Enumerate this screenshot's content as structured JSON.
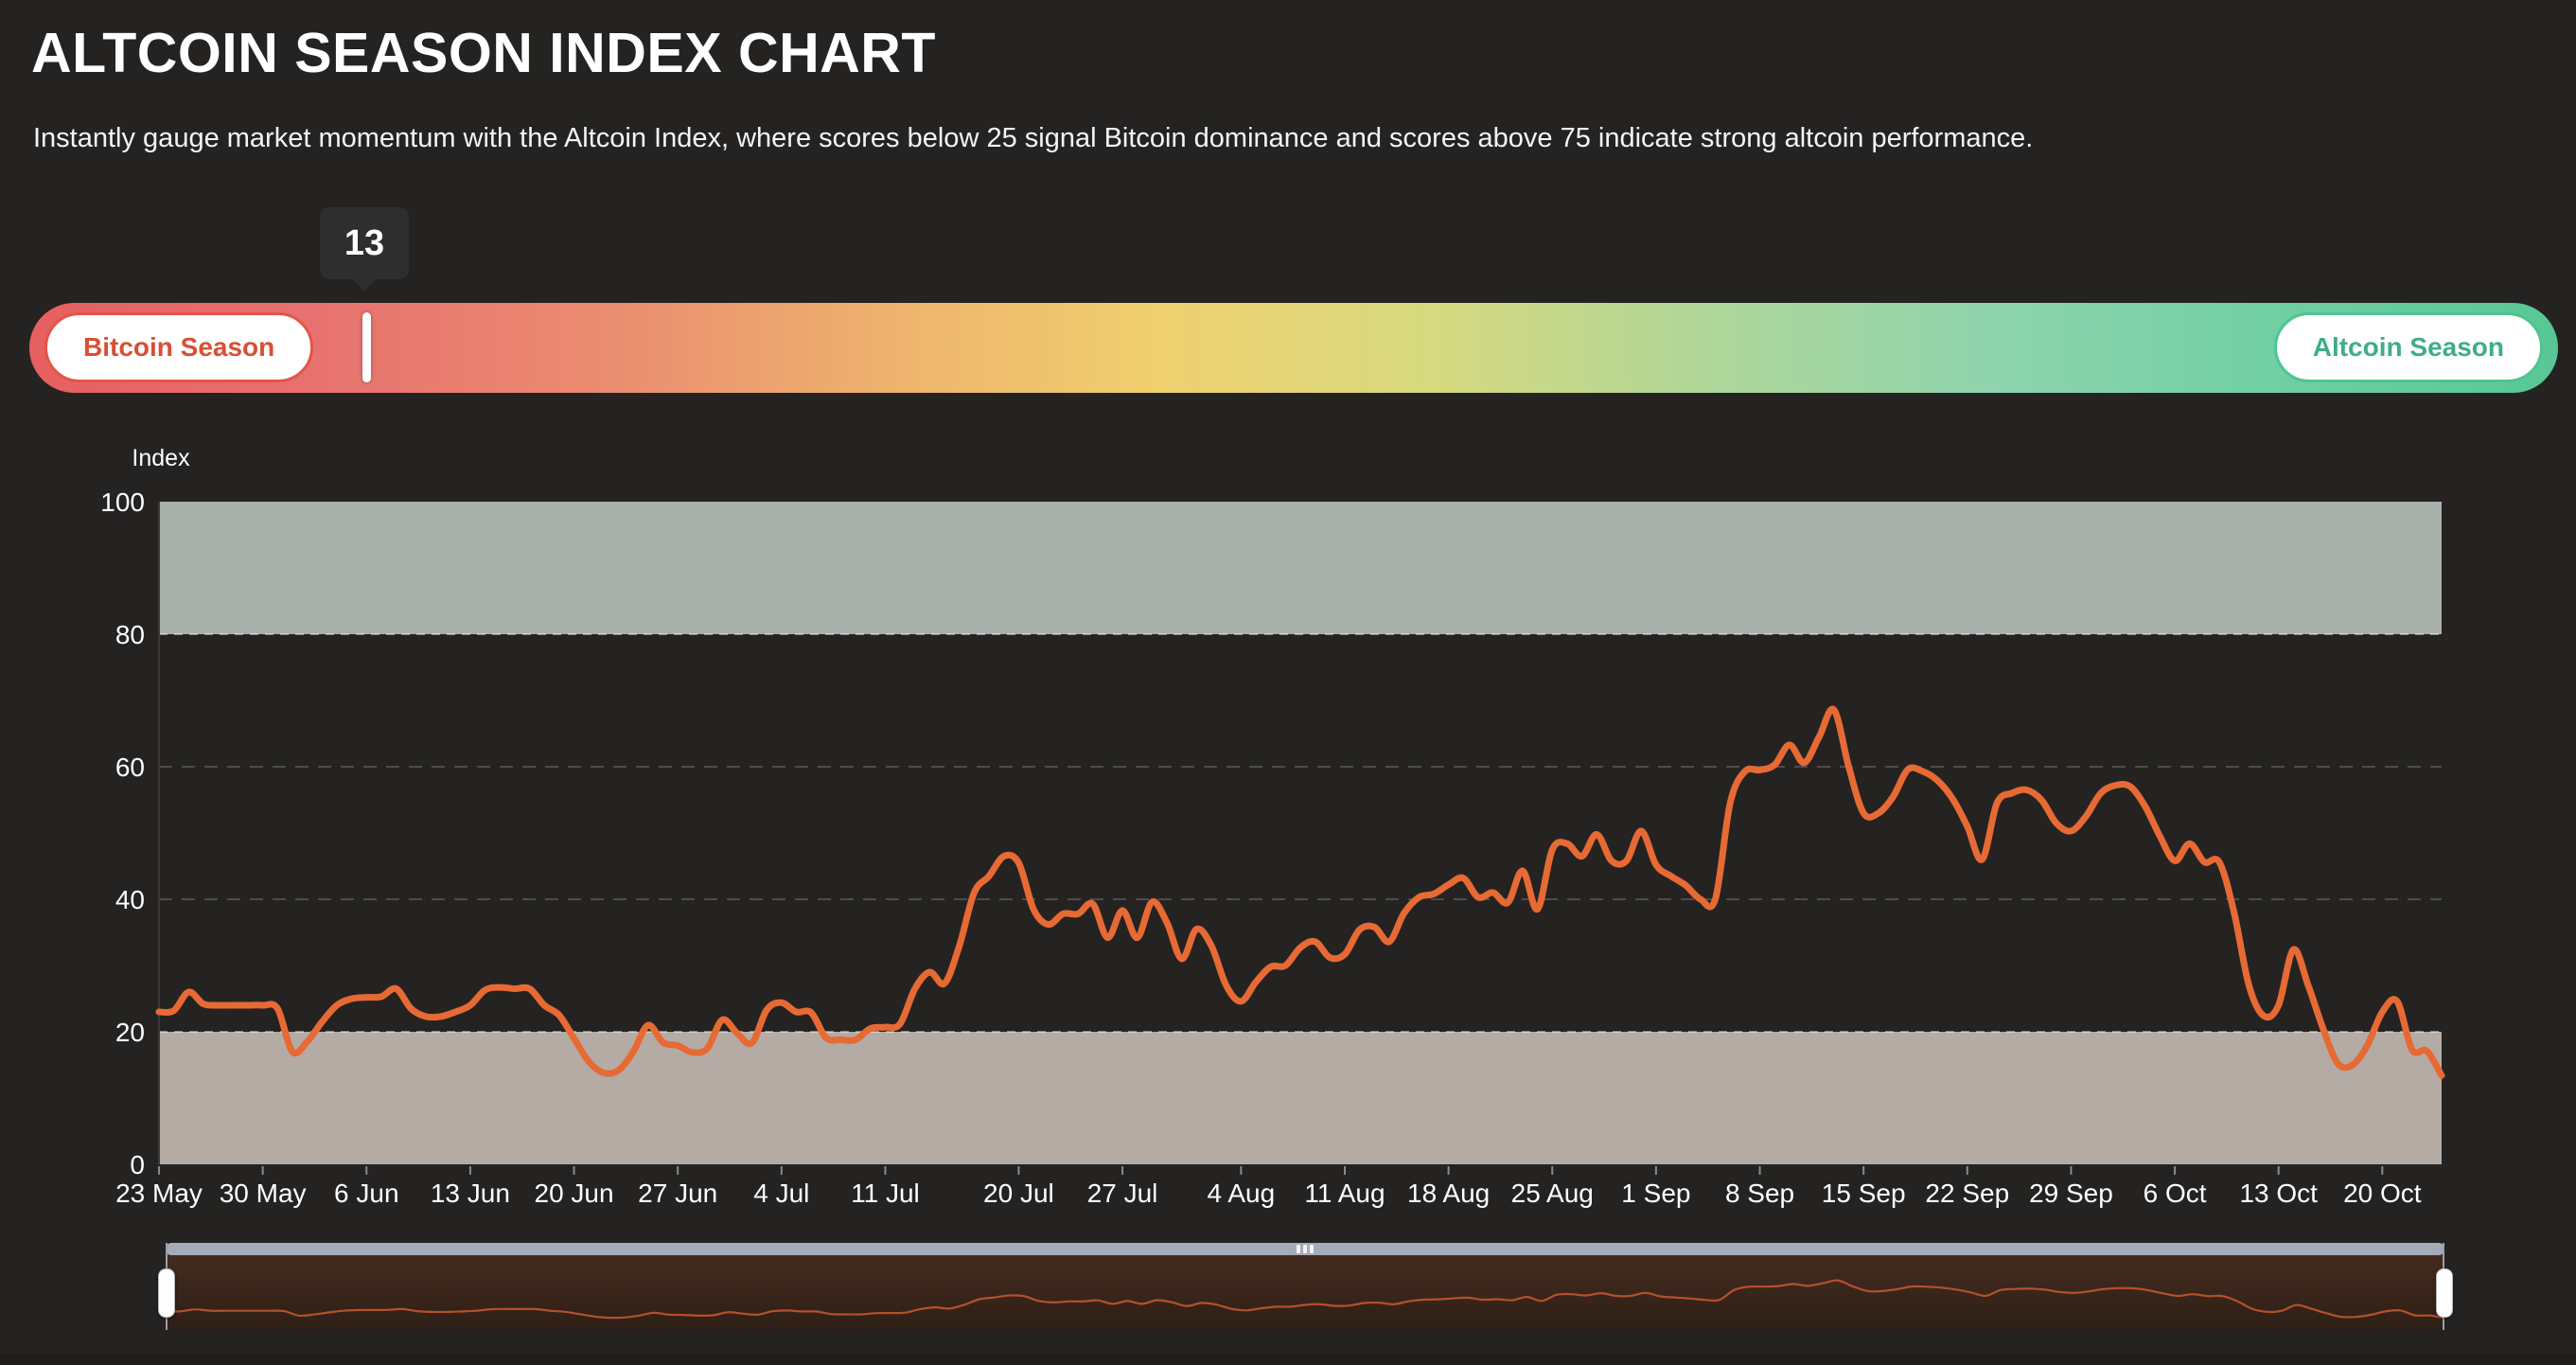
{
  "page": {
    "title": "ALTCOIN SEASON INDEX CHART",
    "subtitle": "Instantly gauge market momentum with the Altcoin Index, where scores below 25 signal Bitcoin dominance and scores above 75 indicate strong altcoin performance."
  },
  "gauge": {
    "current_value": 13,
    "tooltip_value": "13",
    "min": 0,
    "max": 100,
    "left_label": "Bitcoin Season",
    "right_label": "Altcoin Season",
    "left_label_color": "#d94f35",
    "right_label_color": "#3fae85",
    "gradient_stops": [
      "#e75f5f",
      "#e87170",
      "#ea8a70",
      "#eeb06e",
      "#f0cf6e",
      "#d6d97f",
      "#aed699",
      "#8ed4ae",
      "#70cfa3",
      "#58c795"
    ]
  },
  "chart_data": {
    "type": "line",
    "title": "",
    "xlabel": "",
    "ylabel": "Index",
    "ylim": [
      0,
      100
    ],
    "yticks": [
      0,
      20,
      40,
      60,
      80,
      100
    ],
    "grid_dashed_at": [
      40,
      60
    ],
    "band_edge_dashed_at": [
      20,
      80
    ],
    "bands": [
      {
        "from": 80,
        "to": 100,
        "color": "#a9b0ac",
        "meaning": "Altcoin Season zone"
      },
      {
        "from": 0,
        "to": 20,
        "color": "#b5aba5",
        "meaning": "Bitcoin Season zone"
      }
    ],
    "x_tick_labels": [
      "23 May",
      "30 May",
      "6 Jun",
      "13 Jun",
      "20 Jun",
      "27 Jun",
      "4 Jul",
      "11 Jul",
      "20 Jul",
      "27 Jul",
      "4 Aug",
      "11 Aug",
      "18 Aug",
      "25 Aug",
      "1 Sep",
      "8 Sep",
      "15 Sep",
      "22 Sep",
      "29 Sep",
      "6 Oct",
      "13 Oct",
      "20 Oct"
    ],
    "x_tick_indices": [
      0,
      7,
      14,
      21,
      28,
      35,
      42,
      49,
      58,
      65,
      73,
      80,
      87,
      94,
      101,
      108,
      115,
      122,
      129,
      136,
      143,
      150
    ],
    "legend_position": "none",
    "series": [
      {
        "name": "Altcoin Season Index",
        "color": "#e76a34",
        "values": [
          23,
          23.2,
          26,
          24.2,
          24,
          24,
          24,
          24,
          23.5,
          17,
          18.5,
          21.5,
          24,
          25,
          25.2,
          25.3,
          26.5,
          23.5,
          22.3,
          22.3,
          23,
          24,
          26.3,
          26.7,
          26.5,
          26.5,
          24,
          22.5,
          19,
          15.5,
          13.8,
          14.2,
          17,
          21,
          18.4,
          17.9,
          16.9,
          17.5,
          21.8,
          19.8,
          18.3,
          23.3,
          24.4,
          23,
          22.9,
          19.1,
          18.8,
          18.8,
          20.5,
          20.7,
          21.2,
          26.5,
          29,
          27.3,
          33,
          41,
          43.5,
          46.5,
          45.5,
          38.5,
          36.2,
          37.8,
          37.8,
          39.3,
          34.2,
          38.3,
          34.2,
          39.6,
          36.5,
          31,
          35.5,
          33,
          27,
          24.6,
          27.5,
          29.8,
          30,
          32.7,
          33.6,
          31.2,
          31.7,
          35.4,
          35.8,
          33.6,
          37.9,
          40.3,
          40.8,
          42.2,
          43.2,
          40.3,
          41,
          39.5,
          44.3,
          38.5,
          47.5,
          48.4,
          46.5,
          49.8,
          45.8,
          45.8,
          50.3,
          45.2,
          43.5,
          42.1,
          40,
          40,
          54.5,
          59.3,
          59.5,
          60.3,
          63.3,
          60.6,
          64.5,
          68.6,
          60,
          53,
          53,
          55.5,
          59.6,
          59.3,
          57.9,
          55.2,
          51,
          46,
          54.5,
          56,
          56.5,
          55,
          51.5,
          50.3,
          52.5,
          56,
          57.2,
          57,
          54,
          49.5,
          45.8,
          48.4,
          45.6,
          45.6,
          38,
          27,
          22.4,
          24,
          32.4,
          27,
          20.5,
          15.2,
          15,
          18,
          23,
          24.6,
          17.3,
          17.1,
          13.4
        ]
      }
    ]
  },
  "navigator": {
    "minimap_line_color": "#b5502b",
    "background_top": "#442b1f",
    "background_bottom": "#2e1f16",
    "scrollbar_color": "#a6abb8",
    "handle_color": "#fdfdfd"
  },
  "colors": {
    "background": "#242322",
    "axis_text": "#ffffff",
    "grid": "#4e4c49",
    "tooltip_bg": "#2f2e2e"
  }
}
